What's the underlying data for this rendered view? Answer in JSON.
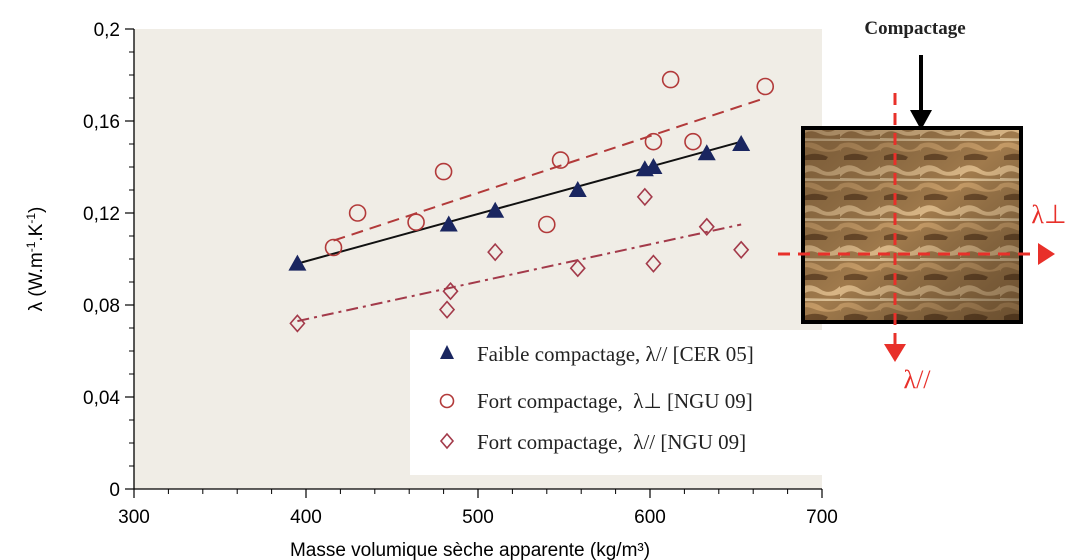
{
  "chart_data": {
    "type": "scatter",
    "xlabel": "Masse volumique sèche apparente (kg/m³)",
    "ylabel_main": "λ (W.m",
    "ylabel_sup1": "-1",
    "ylabel_mid": ".K",
    "ylabel_sup2": "-1",
    "ylabel_end": ")",
    "xlim": [
      300,
      700
    ],
    "ylim": [
      0,
      0.2
    ],
    "x_ticks": [
      300,
      400,
      500,
      600,
      700
    ],
    "x_tick_labels": [
      "300",
      "400",
      "500",
      "600",
      "700"
    ],
    "y_ticks": [
      0,
      0.04,
      0.08,
      0.12,
      0.16,
      0.2
    ],
    "y_tick_labels": [
      "0",
      "0,04",
      "0,08",
      "0,12",
      "0,16",
      "0,2"
    ],
    "plot_background": "#f0ede6",
    "series": [
      {
        "name": "Faible compactage, λ// [CER 05]",
        "marker": "triangle",
        "color": "#1a2660",
        "points": [
          [
            395,
            0.098
          ],
          [
            483,
            0.115
          ],
          [
            510,
            0.121
          ],
          [
            558,
            0.13
          ],
          [
            597,
            0.139
          ],
          [
            602,
            0.14
          ],
          [
            633,
            0.146
          ],
          [
            653,
            0.15
          ]
        ],
        "fit": {
          "style": "solid",
          "color": "#111111",
          "from": [
            395,
            0.098
          ],
          "to": [
            653,
            0.151
          ]
        }
      },
      {
        "name": "Fort compactage, λ⊥ [NGU 09]",
        "marker": "circle",
        "color": "#b23a3a",
        "points": [
          [
            416,
            0.105
          ],
          [
            430,
            0.12
          ],
          [
            464,
            0.116
          ],
          [
            480,
            0.138
          ],
          [
            540,
            0.115
          ],
          [
            548,
            0.143
          ],
          [
            602,
            0.151
          ],
          [
            612,
            0.178
          ],
          [
            625,
            0.151
          ],
          [
            667,
            0.175
          ]
        ],
        "fit": {
          "style": "dashed",
          "color": "#b23a3a",
          "from": [
            416,
            0.108
          ],
          "to": [
            667,
            0.17
          ]
        }
      },
      {
        "name": "Fort compactage, λ// [NGU 09]",
        "marker": "diamond",
        "color": "#a33a4a",
        "points": [
          [
            395,
            0.072
          ],
          [
            482,
            0.078
          ],
          [
            484,
            0.086
          ],
          [
            510,
            0.103
          ],
          [
            558,
            0.096
          ],
          [
            597,
            0.127
          ],
          [
            602,
            0.098
          ],
          [
            633,
            0.114
          ],
          [
            653,
            0.104
          ]
        ],
        "fit": {
          "style": "dashdot",
          "color": "#a33a4a",
          "from": [
            395,
            0.073
          ],
          "to": [
            653,
            0.115
          ]
        }
      }
    ],
    "legend": {
      "placement": "bottom-right",
      "entries": [
        {
          "prefix": "Faible compactage, ",
          "lambda": "λ//",
          "ref": " [CER 05]"
        },
        {
          "prefix": "Fort compactage,  ",
          "lambda": "λ⊥",
          "ref": " [NGU 09]"
        },
        {
          "prefix": "Fort compactage,  ",
          "lambda": "λ//",
          "ref": " [NGU 09]"
        }
      ]
    }
  },
  "inset": {
    "label": "Compactage",
    "lambda_perp": "λ⊥",
    "lambda_par": "λ//",
    "arrow_color": "#000000",
    "dashed_color": "#e8302a"
  }
}
